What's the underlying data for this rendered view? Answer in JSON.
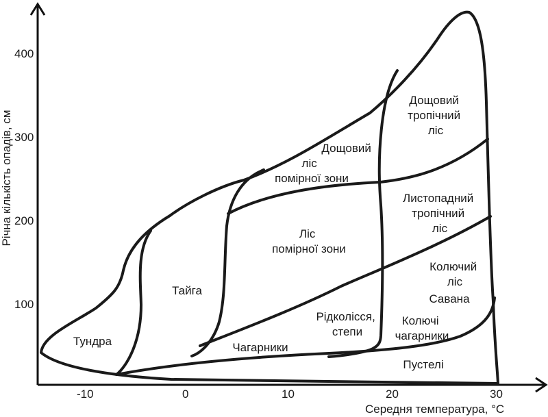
{
  "axes": {
    "y_title": "Річна кількість опадів, см",
    "x_title": "Середня температура, °C",
    "y_ticks": [
      "100",
      "200",
      "300",
      "400"
    ],
    "x_ticks": [
      "-10",
      "0",
      "10",
      "20",
      "30"
    ]
  },
  "biomes": {
    "tundra": "Тундра",
    "taiga": "Тайга",
    "temperate_rainforest": [
      "Дощовий",
      "ліс",
      "помірної зони"
    ],
    "temperate_forest": [
      "Ліс",
      "помірної зони"
    ],
    "tropical_rainforest": [
      "Дощовий",
      "тропічний",
      "ліс"
    ],
    "tropical_deciduous": [
      "Листопадний",
      "тропічний",
      "ліс"
    ],
    "thorn_forest": [
      "Колючий",
      "ліс"
    ],
    "savanna": "Савана",
    "woodland_steppe": [
      "Рідколісся,",
      "степи"
    ],
    "thorn_scrub": [
      "Колючі",
      "чагарники"
    ],
    "shrubland": "Чагарники",
    "desert": "Пустелі"
  }
}
